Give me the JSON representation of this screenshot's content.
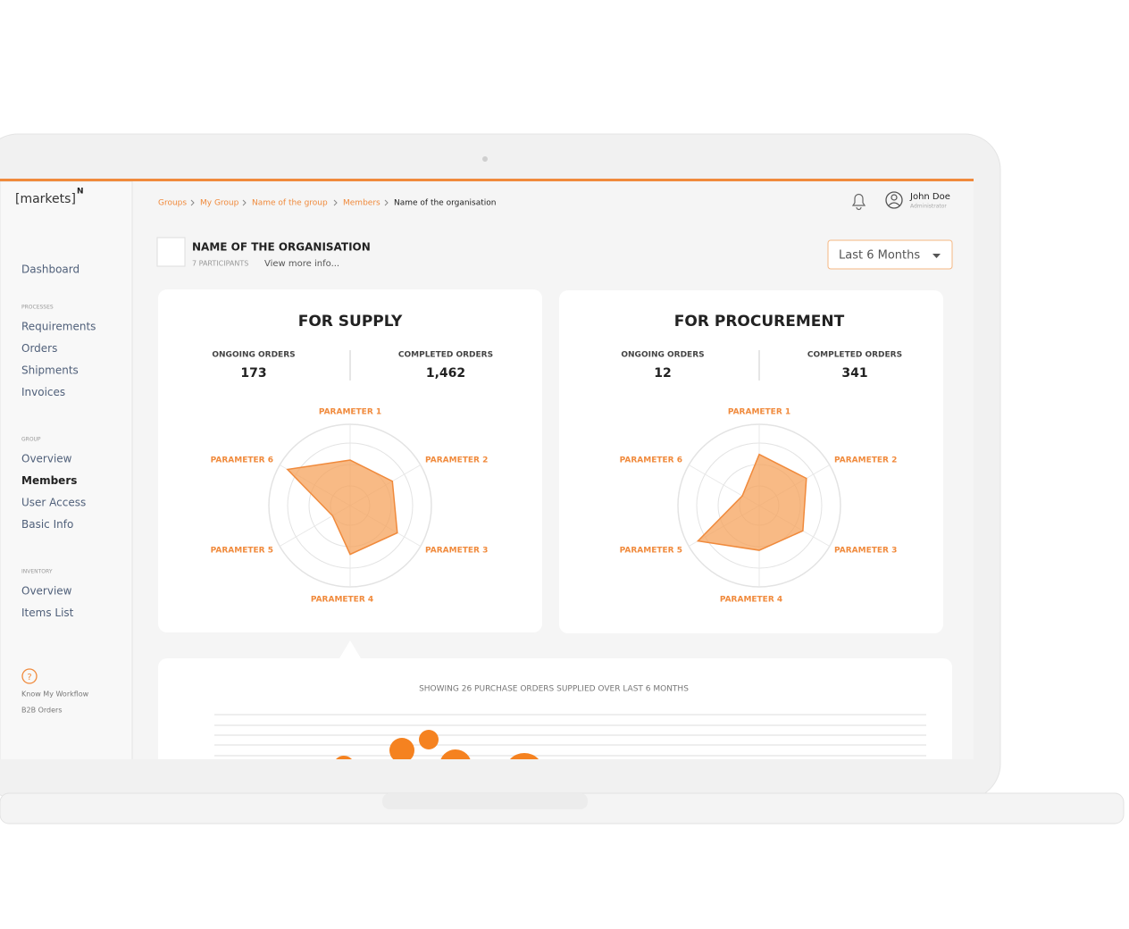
{
  "logo": "[markets]",
  "logo_sup": "N",
  "sidebar": {
    "dashboard": "Dashboard",
    "sections": [
      {
        "heading": "PROCESSES",
        "items": [
          "Requirements",
          "Orders",
          "Shipments",
          "Invoices"
        ]
      },
      {
        "heading": "GROUP",
        "items": [
          "Overview",
          "Members",
          "User Access",
          "Basic Info"
        ]
      },
      {
        "heading": "INVENTORY",
        "items": [
          "Overview",
          "Items List"
        ]
      }
    ],
    "active": "Members",
    "help": {
      "line1": "Know My Workflow",
      "line2": "B2B Orders"
    }
  },
  "breadcrumb": [
    "Groups",
    "My Group",
    "Name of the group",
    "Members",
    "Name of the organisation"
  ],
  "user": {
    "name": "John Doe",
    "role": "Administrator"
  },
  "org": {
    "name": "NAME OF THE ORGANISATION",
    "participants": "7 PARTICIPANTS",
    "more": "View more info..."
  },
  "period": "Last 6 Months",
  "panels": [
    {
      "title": "FOR SUPPLY",
      "ongoing_label": "ONGOING ORDERS",
      "ongoing": 173,
      "completed_label": "COMPLETED ORDERS",
      "completed": "1,462",
      "radar": {
        "type": "radar",
        "axes": [
          "PARAMETER 1",
          "PARAMETER 2",
          "PARAMETER 3",
          "PARAMETER 4",
          "PARAMETER 5",
          "PARAMETER 6"
        ],
        "rlim": [
          0,
          1
        ],
        "values": [
          0.56,
          0.6,
          0.67,
          0.6,
          0.25,
          0.89
        ],
        "color": "#f5a35c"
      }
    },
    {
      "title": "FOR PROCUREMENT",
      "ongoing_label": "ONGOING ORDERS",
      "ongoing": 12,
      "completed_label": "COMPLETED ORDERS",
      "completed": 341,
      "radar": {
        "type": "radar",
        "axes": [
          "PARAMETER 1",
          "PARAMETER 2",
          "PARAMETER 3",
          "PARAMETER 4",
          "PARAMETER 5",
          "PARAMETER 6"
        ],
        "rlim": [
          0,
          1
        ],
        "values": [
          0.63,
          0.67,
          0.62,
          0.55,
          0.87,
          0.24
        ],
        "color": "#f5a35c"
      }
    }
  ],
  "orders_caption": "SHOWING 26 PURCHASE ORDERS SUPPLIED OVER LAST 6 MONTHS"
}
